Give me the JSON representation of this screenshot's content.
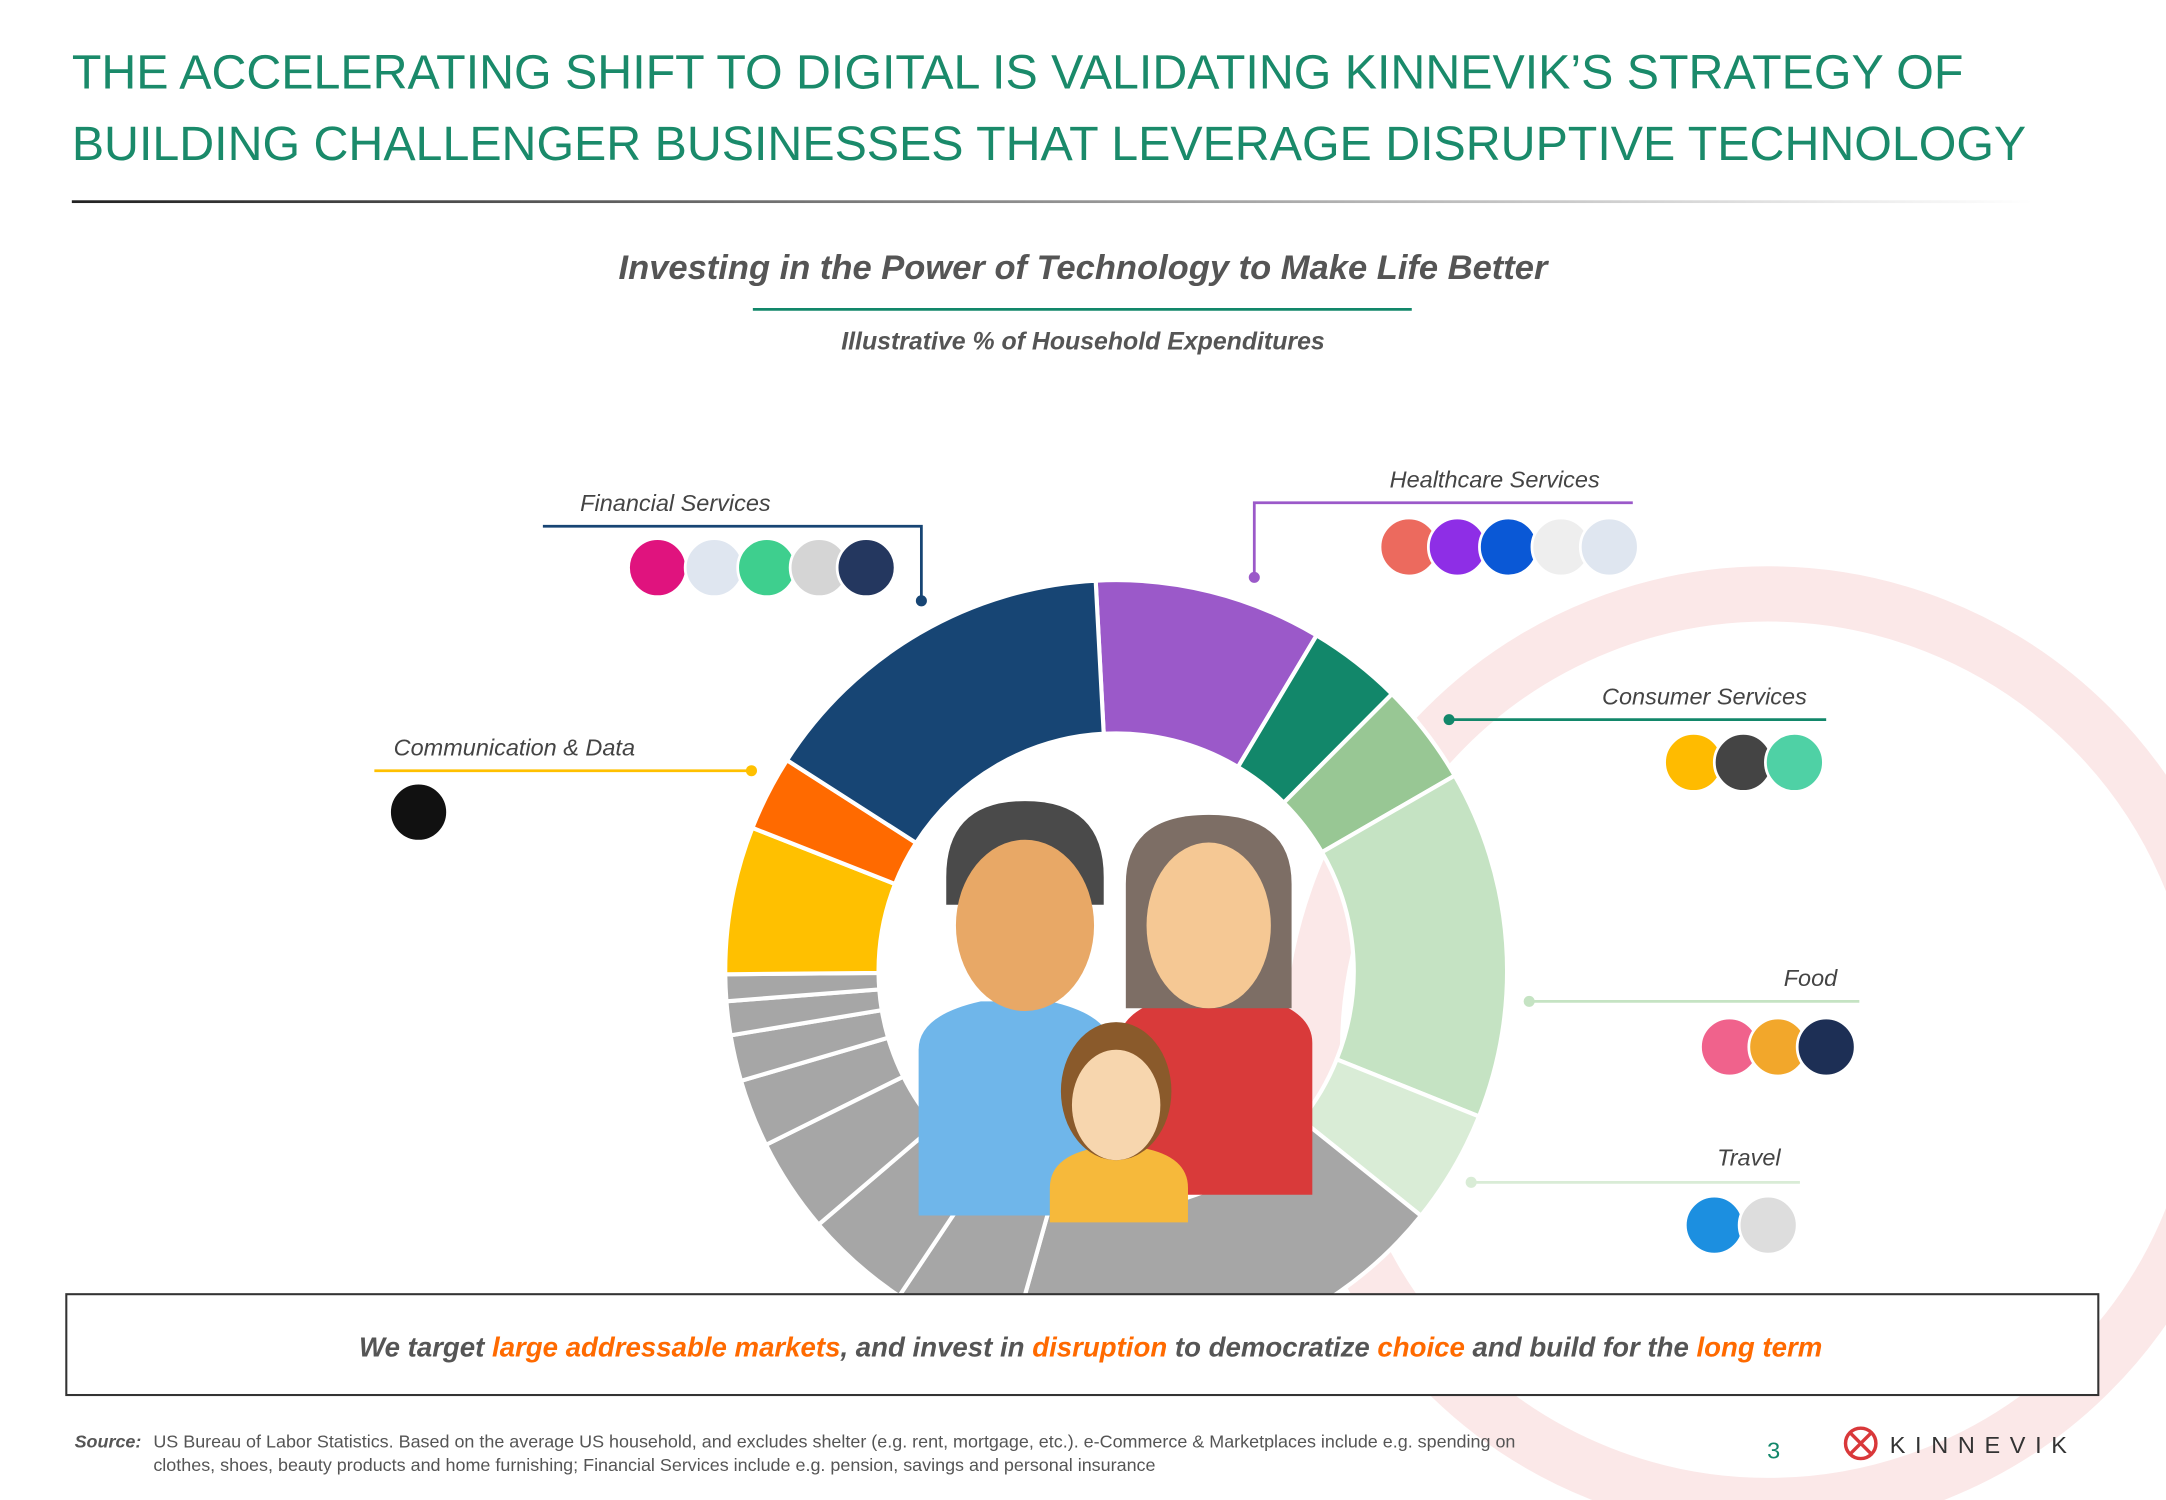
{
  "title_lines": [
    "THE ACCELERATING SHIFT TO DIGITAL IS VALIDATING KINNEVIK’S STRATEGY OF",
    "BUILDING CHALLENGER BUSINESSES THAT LEVERAGE DISRUPTIVE TECHNOLOGY"
  ],
  "chart_data": {
    "type": "donut",
    "title": "Investing in the Power of Technology to Make Life Better",
    "subtitle": "Illustrative % of Household Expenditures",
    "categories": [
      "Healthcare Services",
      "Consumer Services",
      null,
      "Food",
      "Travel",
      null,
      null,
      null,
      null,
      null,
      null,
      null,
      null,
      "Communication & Data",
      null,
      "Financial Services"
    ],
    "values": [
      9.4,
      3.9,
      4.2,
      14.4,
      4.7,
      18.6,
      5,
      4.4,
      3.9,
      2.8,
      1.9,
      1.4,
      1.1,
      6.1,
      3.1,
      15.1
    ],
    "colors": [
      "#9b59c9",
      "#12876a",
      "#98c794",
      "#c5e3c3",
      "#d9ecd6",
      "#a6a6a6",
      "#a6a6a6",
      "#a6a6a6",
      "#a6a6a6",
      "#a6a6a6",
      "#a6a6a6",
      "#a6a6a6",
      "#a6a6a6",
      "#ffc000",
      "#ff6a00",
      "#174574"
    ]
  },
  "statement": [
    "We target ",
    "large addressable markets",
    ", and invest in ",
    "disruption",
    " to democratize ",
    "choice",
    " and build for the ",
    "long term"
  ],
  "source_label": "Source:",
  "source_lines": [
    "US Bureau of Labor Statistics. Based on the average US household, and excludes shelter (e.g. rent, mortgage, etc.). e-Commerce & Marketplaces include e.g. spending on",
    "clothes, shoes, beauty products and home furnishing; Financial Services include e.g. pension, savings and personal insurance"
  ],
  "page_number": "3",
  "brand": "KINNEVIK"
}
